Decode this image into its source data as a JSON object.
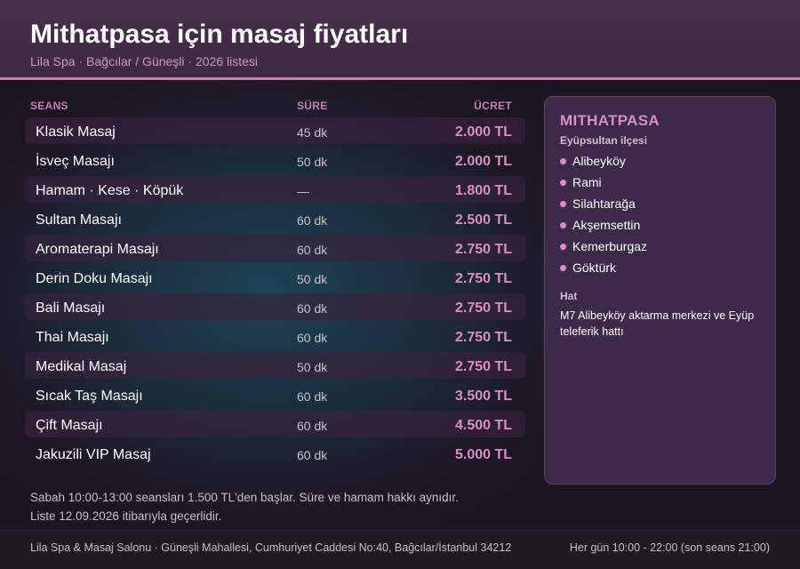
{
  "header": {
    "title": "Mithatpasa için masaj fiyatları",
    "subtitle": "Lila Spa · Bağcılar / Güneşli · 2026 listesi"
  },
  "table": {
    "columns": [
      "SEANS",
      "SÜRE",
      "ÜCRET"
    ],
    "rows": [
      {
        "name": "Klasik Masaj",
        "duration": "45 dk",
        "price": "2.000 TL"
      },
      {
        "name": "İsveç Masajı",
        "duration": "50 dk",
        "price": "2.000 TL"
      },
      {
        "name": "Hamam · Kese · Köpük",
        "duration": "—",
        "price": "1.800 TL"
      },
      {
        "name": "Sultan Masajı",
        "duration": "60 dk",
        "price": "2.500 TL"
      },
      {
        "name": "Aromaterapi Masajı",
        "duration": "60 dk",
        "price": "2.750 TL"
      },
      {
        "name": "Derin Doku Masajı",
        "duration": "50 dk",
        "price": "2.750 TL"
      },
      {
        "name": "Bali Masajı",
        "duration": "60 dk",
        "price": "2.750 TL"
      },
      {
        "name": "Thai Masajı",
        "duration": "60 dk",
        "price": "2.750 TL"
      },
      {
        "name": "Medikal Masaj",
        "duration": "50 dk",
        "price": "2.750 TL"
      },
      {
        "name": "Sıcak Taş Masajı",
        "duration": "60 dk",
        "price": "3.500 TL"
      },
      {
        "name": "Çift Masajı",
        "duration": "60 dk",
        "price": "4.500 TL"
      },
      {
        "name": "Jakuzili VIP Masaj",
        "duration": "60 dk",
        "price": "5.000 TL"
      }
    ]
  },
  "panel": {
    "title": "MITHATPASA",
    "subtitle": "Eyüpsultan ilçesi",
    "neighborhoods": [
      "Alibeyköy",
      "Rami",
      "Silahtarağa",
      "Akşemsettin",
      "Kemerburgaz",
      "Göktürk"
    ],
    "line_label": "Hat",
    "line_text": "M7 Alibeyköy aktarma merkezi ve Eyüp teleferik hattı"
  },
  "notes": {
    "line1": "Sabah 10:00-13:00 seansları 1.500 TL'den başlar. Süre ve hamam hakkı aynıdır.",
    "line2": "Liste 12.09.2026 itibarıyla geçerlidir."
  },
  "footer": {
    "address": "Lila Spa & Masaj Salonu · Güneşli Mahallesi, Cumhuriyet Caddesi No:40, Bağcılar/İstanbul 34212",
    "hours": "Her gün 10:00 - 22:00 (son seans 21:00)"
  },
  "colors": {
    "accent": "#d88fc1",
    "header_bg": "#452d48",
    "panel_bg": "#3d2a48"
  }
}
